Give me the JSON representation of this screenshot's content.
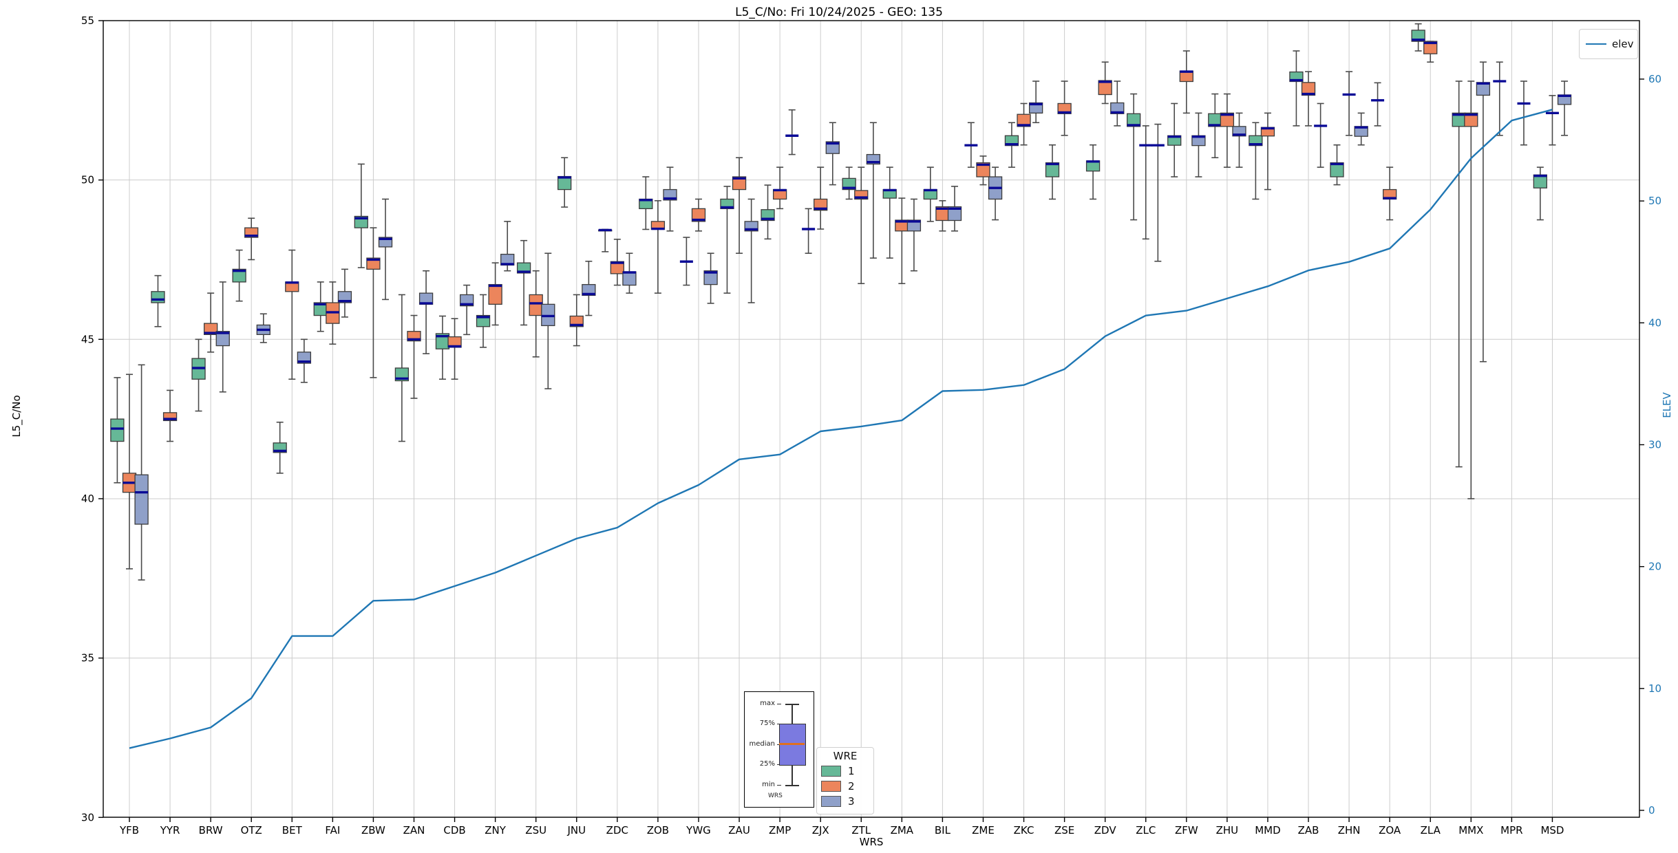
{
  "title": "L5_C/No: Fri 10/24/2025 - GEO: 135",
  "axes": {
    "xlabel": "WRS",
    "ylabel_left": "L5_C/No",
    "ylabel_right": "ELEV",
    "yticks_left": [
      30,
      35,
      40,
      45,
      50,
      55
    ],
    "ylim_left": [
      30,
      55
    ],
    "yticks_right": [
      0,
      10,
      20,
      30,
      40,
      50,
      60
    ],
    "grid": true
  },
  "legend_line": {
    "label": "elev",
    "color": "#1f77b4"
  },
  "legend_wre": {
    "title": "WRE",
    "entries": [
      {
        "label": "1",
        "color": "#66b897"
      },
      {
        "label": "2",
        "color": "#ec855c"
      },
      {
        "label": "3",
        "color": "#8fa0c9"
      }
    ]
  },
  "inset": {
    "max": "max",
    "p75": "75%",
    "median": "median",
    "p25": "25%",
    "min": "min",
    "axis_label": "WRS",
    "box_color": "#7b7ae0",
    "median_color": "#e07020"
  },
  "chart_data": {
    "type": "boxplot+line",
    "title": "L5_C/No: Fri 10/24/2025 - GEO: 135",
    "xlabel": "WRS",
    "ylabel_left": "L5_C/No",
    "ylabel_right": "ELEV",
    "ylim_left": [
      30,
      55
    ],
    "ylim_right": [
      -1,
      64
    ],
    "legend_position": "upper right",
    "series_labels": [
      "1",
      "2",
      "3"
    ],
    "box_values_order": [
      "min",
      "q1",
      "median",
      "q3",
      "max"
    ],
    "stations": [
      {
        "name": "YFB",
        "elev": 5.1,
        "wre1": [
          40.5,
          41.8,
          42.2,
          42.5,
          43.8
        ],
        "wre2": [
          37.8,
          40.2,
          40.5,
          40.8,
          43.9
        ],
        "wre3": [
          37.45,
          39.2,
          40.2,
          40.75,
          44.2
        ]
      },
      {
        "name": "YYR",
        "elev": 5.9,
        "wre1": [
          45.4,
          46.15,
          46.25,
          46.5,
          47.0
        ],
        "wre2": [
          41.8,
          42.45,
          42.5,
          42.7,
          43.4
        ],
        "wre3": null
      },
      {
        "name": "BRW",
        "elev": 6.8,
        "wre1": [
          42.75,
          43.75,
          44.1,
          44.4,
          45.0
        ],
        "wre2": [
          44.6,
          45.15,
          45.2,
          45.5,
          46.45
        ],
        "wre3": [
          43.35,
          44.8,
          45.2,
          45.25,
          46.8
        ]
      },
      {
        "name": "OTZ",
        "elev": 9.2,
        "wre1": [
          46.2,
          46.8,
          47.15,
          47.2,
          47.8
        ],
        "wre2": [
          47.5,
          48.2,
          48.25,
          48.5,
          48.8
        ],
        "wre3": [
          44.9,
          45.15,
          45.3,
          45.45,
          45.8
        ]
      },
      {
        "name": "BET",
        "elev": 14.3,
        "wre1": [
          40.8,
          41.45,
          41.5,
          41.75,
          42.4
        ],
        "wre2": [
          43.75,
          46.5,
          46.78,
          46.8,
          47.8
        ],
        "wre3": [
          43.65,
          44.25,
          44.3,
          44.6,
          45.0
        ]
      },
      {
        "name": "FAI",
        "elev": 14.3,
        "wre1": [
          45.25,
          45.75,
          46.1,
          46.15,
          46.8
        ],
        "wre2": [
          44.85,
          45.5,
          45.85,
          46.15,
          46.8
        ],
        "wre3": [
          45.7,
          46.15,
          46.2,
          46.5,
          47.2
        ]
      },
      {
        "name": "ZBW",
        "elev": 17.2,
        "wre1": [
          47.25,
          48.5,
          48.8,
          48.86,
          50.5
        ],
        "wre2": [
          43.8,
          47.2,
          47.5,
          47.55,
          48.5
        ],
        "wre3": [
          46.25,
          47.9,
          48.15,
          48.2,
          49.4
        ]
      },
      {
        "name": "ZAN",
        "elev": 17.3,
        "wre1": [
          41.8,
          43.7,
          43.77,
          44.1,
          46.4
        ],
        "wre2": [
          43.15,
          44.95,
          45.0,
          45.25,
          45.75
        ],
        "wre3": [
          44.55,
          46.1,
          46.13,
          46.45,
          47.15
        ]
      },
      {
        "name": "CDB",
        "elev": 18.4,
        "wre1": [
          43.75,
          44.7,
          45.1,
          45.18,
          45.73
        ],
        "wre2": [
          43.75,
          44.75,
          44.78,
          45.08,
          45.65
        ],
        "wre3": [
          45.15,
          46.05,
          46.1,
          46.4,
          46.7
        ]
      },
      {
        "name": "ZNY",
        "elev": 19.5,
        "wre1": [
          44.75,
          45.4,
          45.7,
          45.75,
          46.4
        ],
        "wre2": [
          45.45,
          46.1,
          46.68,
          46.72,
          47.4
        ],
        "wre3": [
          47.15,
          47.33,
          47.36,
          47.67,
          48.7
        ]
      },
      {
        "name": "ZSU",
        "elev": 20.9,
        "wre1": [
          45.45,
          47.08,
          47.12,
          47.4,
          48.1
        ],
        "wre2": [
          44.45,
          45.75,
          46.13,
          46.4,
          47.15
        ],
        "wre3": [
          43.45,
          45.43,
          45.73,
          46.1,
          47.7
        ]
      },
      {
        "name": "JNU",
        "elev": 22.3,
        "wre1": [
          49.15,
          49.7,
          50.08,
          50.11,
          50.7
        ],
        "wre2": [
          44.8,
          45.4,
          45.45,
          45.73,
          46.4
        ],
        "wre3": [
          45.75,
          46.38,
          46.42,
          46.72,
          47.45
        ]
      },
      {
        "name": "ZDC",
        "elev": 23.2,
        "wre1": [
          47.75,
          48.4,
          48.43,
          48.43,
          48.45
        ],
        "wre2": [
          46.7,
          47.06,
          47.4,
          47.44,
          48.14
        ],
        "wre3": [
          46.45,
          46.7,
          47.1,
          47.12,
          47.7
        ]
      },
      {
        "name": "ZOB",
        "elev": 25.2,
        "wre1": [
          48.45,
          49.1,
          49.37,
          49.4,
          50.1
        ],
        "wre2": [
          46.45,
          48.45,
          48.47,
          48.7,
          49.35
        ],
        "wre3": [
          48.4,
          49.37,
          49.42,
          49.7,
          50.4
        ]
      },
      {
        "name": "YWG",
        "elev": 26.7,
        "wre1": [
          46.7,
          47.44,
          47.44,
          47.44,
          48.2
        ],
        "wre2": [
          48.4,
          48.7,
          48.75,
          49.1,
          49.4
        ],
        "wre3": [
          46.13,
          46.72,
          47.1,
          47.15,
          47.7
        ]
      },
      {
        "name": "ZAU",
        "elev": 28.8,
        "wre1": [
          46.45,
          49.1,
          49.14,
          49.4,
          49.8
        ],
        "wre2": [
          47.7,
          49.7,
          50.05,
          50.1,
          50.7
        ],
        "wre3": [
          46.15,
          48.4,
          48.45,
          48.7,
          49.4
        ]
      },
      {
        "name": "ZMP",
        "elev": 29.2,
        "wre1": [
          48.15,
          48.73,
          48.78,
          49.07,
          49.84
        ],
        "wre2": [
          49.1,
          49.4,
          49.68,
          49.7,
          50.4
        ],
        "wre3": [
          50.8,
          51.39,
          51.39,
          51.39,
          52.2
        ]
      },
      {
        "name": "ZJX",
        "elev": 31.1,
        "wre1": [
          47.7,
          48.46,
          48.46,
          48.46,
          49.1
        ],
        "wre2": [
          48.46,
          49.05,
          49.1,
          49.4,
          50.4
        ],
        "wre3": [
          49.85,
          50.83,
          51.15,
          51.2,
          51.8
        ]
      },
      {
        "name": "ZTL",
        "elev": 31.5,
        "wre1": [
          49.4,
          49.7,
          49.75,
          50.05,
          50.4
        ],
        "wre2": [
          46.75,
          49.4,
          49.45,
          49.67,
          50.4
        ],
        "wre3": [
          47.55,
          50.5,
          50.56,
          50.8,
          51.8
        ]
      },
      {
        "name": "ZMA",
        "elev": 32.0,
        "wre1": [
          47.55,
          49.43,
          49.68,
          49.7,
          50.4
        ],
        "wre2": [
          46.75,
          48.4,
          48.7,
          48.74,
          49.43
        ],
        "wre3": [
          47.15,
          48.4,
          48.7,
          48.74,
          49.4
        ]
      },
      {
        "name": "BIL",
        "elev": 34.4,
        "wre1": [
          48.7,
          49.4,
          49.68,
          49.7,
          50.4
        ],
        "wre2": [
          48.4,
          48.73,
          49.1,
          49.16,
          49.35
        ],
        "wre3": [
          48.4,
          48.73,
          49.1,
          49.16,
          49.8
        ]
      },
      {
        "name": "ZME",
        "elev": 34.5,
        "wre1": [
          50.4,
          51.09,
          51.09,
          51.09,
          51.8
        ],
        "wre2": [
          49.85,
          50.1,
          50.48,
          50.54,
          50.75
        ],
        "wre3": [
          48.75,
          49.4,
          49.75,
          50.1,
          50.4
        ]
      },
      {
        "name": "ZKC",
        "elev": 34.9,
        "wre1": [
          50.4,
          51.08,
          51.12,
          51.39,
          51.8
        ],
        "wre2": [
          51.1,
          51.68,
          51.72,
          52.06,
          52.4
        ],
        "wre3": [
          51.8,
          52.1,
          52.38,
          52.42,
          53.1
        ]
      },
      {
        "name": "ZSE",
        "elev": 36.2,
        "wre1": [
          49.4,
          50.1,
          50.5,
          50.54,
          51.1
        ],
        "wre2": [
          51.4,
          52.08,
          52.12,
          52.4,
          53.1
        ],
        "wre3": null
      },
      {
        "name": "ZDV",
        "elev": 38.9,
        "wre1": [
          49.4,
          50.28,
          50.58,
          50.6,
          51.1
        ],
        "wre2": [
          52.4,
          52.68,
          53.08,
          53.12,
          53.7
        ],
        "wre3": [
          51.7,
          52.08,
          52.12,
          52.42,
          53.1
        ]
      },
      {
        "name": "ZLC",
        "elev": 40.6,
        "wre1": [
          48.75,
          51.68,
          51.72,
          52.08,
          52.7
        ],
        "wre2": [
          48.15,
          51.09,
          51.09,
          51.09,
          51.7
        ],
        "wre3": [
          47.45,
          51.09,
          51.09,
          51.09,
          51.75
        ]
      },
      {
        "name": "ZFW",
        "elev": 41.0,
        "wre1": [
          50.1,
          51.09,
          51.36,
          51.39,
          52.4
        ],
        "wre2": [
          52.1,
          53.09,
          53.4,
          53.42,
          54.05
        ],
        "wre3": [
          50.1,
          51.08,
          51.36,
          51.39,
          52.1
        ]
      },
      {
        "name": "ZHU",
        "elev": 42.0,
        "wre1": [
          50.7,
          51.68,
          51.72,
          52.08,
          52.7
        ],
        "wre2": [
          50.4,
          51.68,
          52.05,
          52.1,
          52.7
        ],
        "wre3": [
          50.4,
          51.38,
          51.42,
          51.68,
          52.1
        ]
      },
      {
        "name": "MMD",
        "elev": 43.0,
        "wre1": [
          49.4,
          51.08,
          51.12,
          51.39,
          51.8
        ],
        "wre2": [
          49.7,
          51.38,
          51.62,
          51.65,
          52.1
        ],
        "wre3": null
      },
      {
        "name": "ZAB",
        "elev": 44.3,
        "wre1": [
          51.7,
          53.09,
          53.13,
          53.39,
          54.05
        ],
        "wre2": [
          51.7,
          52.66,
          52.7,
          53.06,
          53.4
        ],
        "wre3": [
          50.4,
          51.7,
          51.7,
          51.7,
          52.4
        ]
      },
      {
        "name": "ZHN",
        "elev": 45.0,
        "wre1": [
          49.85,
          50.1,
          50.5,
          50.54,
          51.1
        ],
        "wre2": [
          51.4,
          52.68,
          52.68,
          52.68,
          53.4
        ],
        "wre3": [
          51.1,
          51.37,
          51.65,
          51.68,
          52.1
        ]
      },
      {
        "name": "ZOA",
        "elev": 46.1,
        "wre1": [
          51.7,
          52.5,
          52.5,
          52.5,
          53.05
        ],
        "wre2": [
          48.75,
          49.4,
          49.43,
          49.7,
          50.4
        ],
        "wre3": null
      },
      {
        "name": "ZLA",
        "elev": 49.3,
        "wre1": [
          54.05,
          54.35,
          54.4,
          54.7,
          54.9
        ],
        "wre2": [
          53.7,
          53.96,
          54.3,
          54.35,
          54.35
        ],
        "wre3": null
      },
      {
        "name": "MMX",
        "elev": 53.5,
        "wre1": [
          41.0,
          51.68,
          52.05,
          52.1,
          53.1
        ],
        "wre2": [
          40.0,
          51.68,
          52.05,
          52.1,
          53.1
        ],
        "wre3": [
          44.3,
          52.66,
          53.03,
          53.06,
          53.7
        ]
      },
      {
        "name": "MPR",
        "elev": 56.6,
        "wre1": [
          51.4,
          53.1,
          53.1,
          53.1,
          53.7
        ],
        "wre2": null,
        "wre3": [
          51.1,
          52.4,
          52.4,
          52.4,
          53.1
        ]
      },
      {
        "name": "MSD",
        "elev": 57.5,
        "wre1": [
          48.75,
          49.75,
          50.13,
          50.16,
          50.4
        ],
        "wre2": [
          51.1,
          52.1,
          52.1,
          52.1,
          52.65
        ],
        "wre3": [
          51.4,
          52.37,
          52.64,
          52.67,
          53.1
        ]
      }
    ],
    "colors": {
      "wre1": "#66b897",
      "wre2": "#ec855c",
      "wre3": "#8fa0c9",
      "median": "#0a0a96",
      "whisker": "#4a4a4a",
      "box_edge": "#3c3c3c",
      "elev_line": "#1f77b4",
      "grid": "#cccccc",
      "frame": "#000000",
      "right_axis_text": "#1f77b4"
    }
  }
}
